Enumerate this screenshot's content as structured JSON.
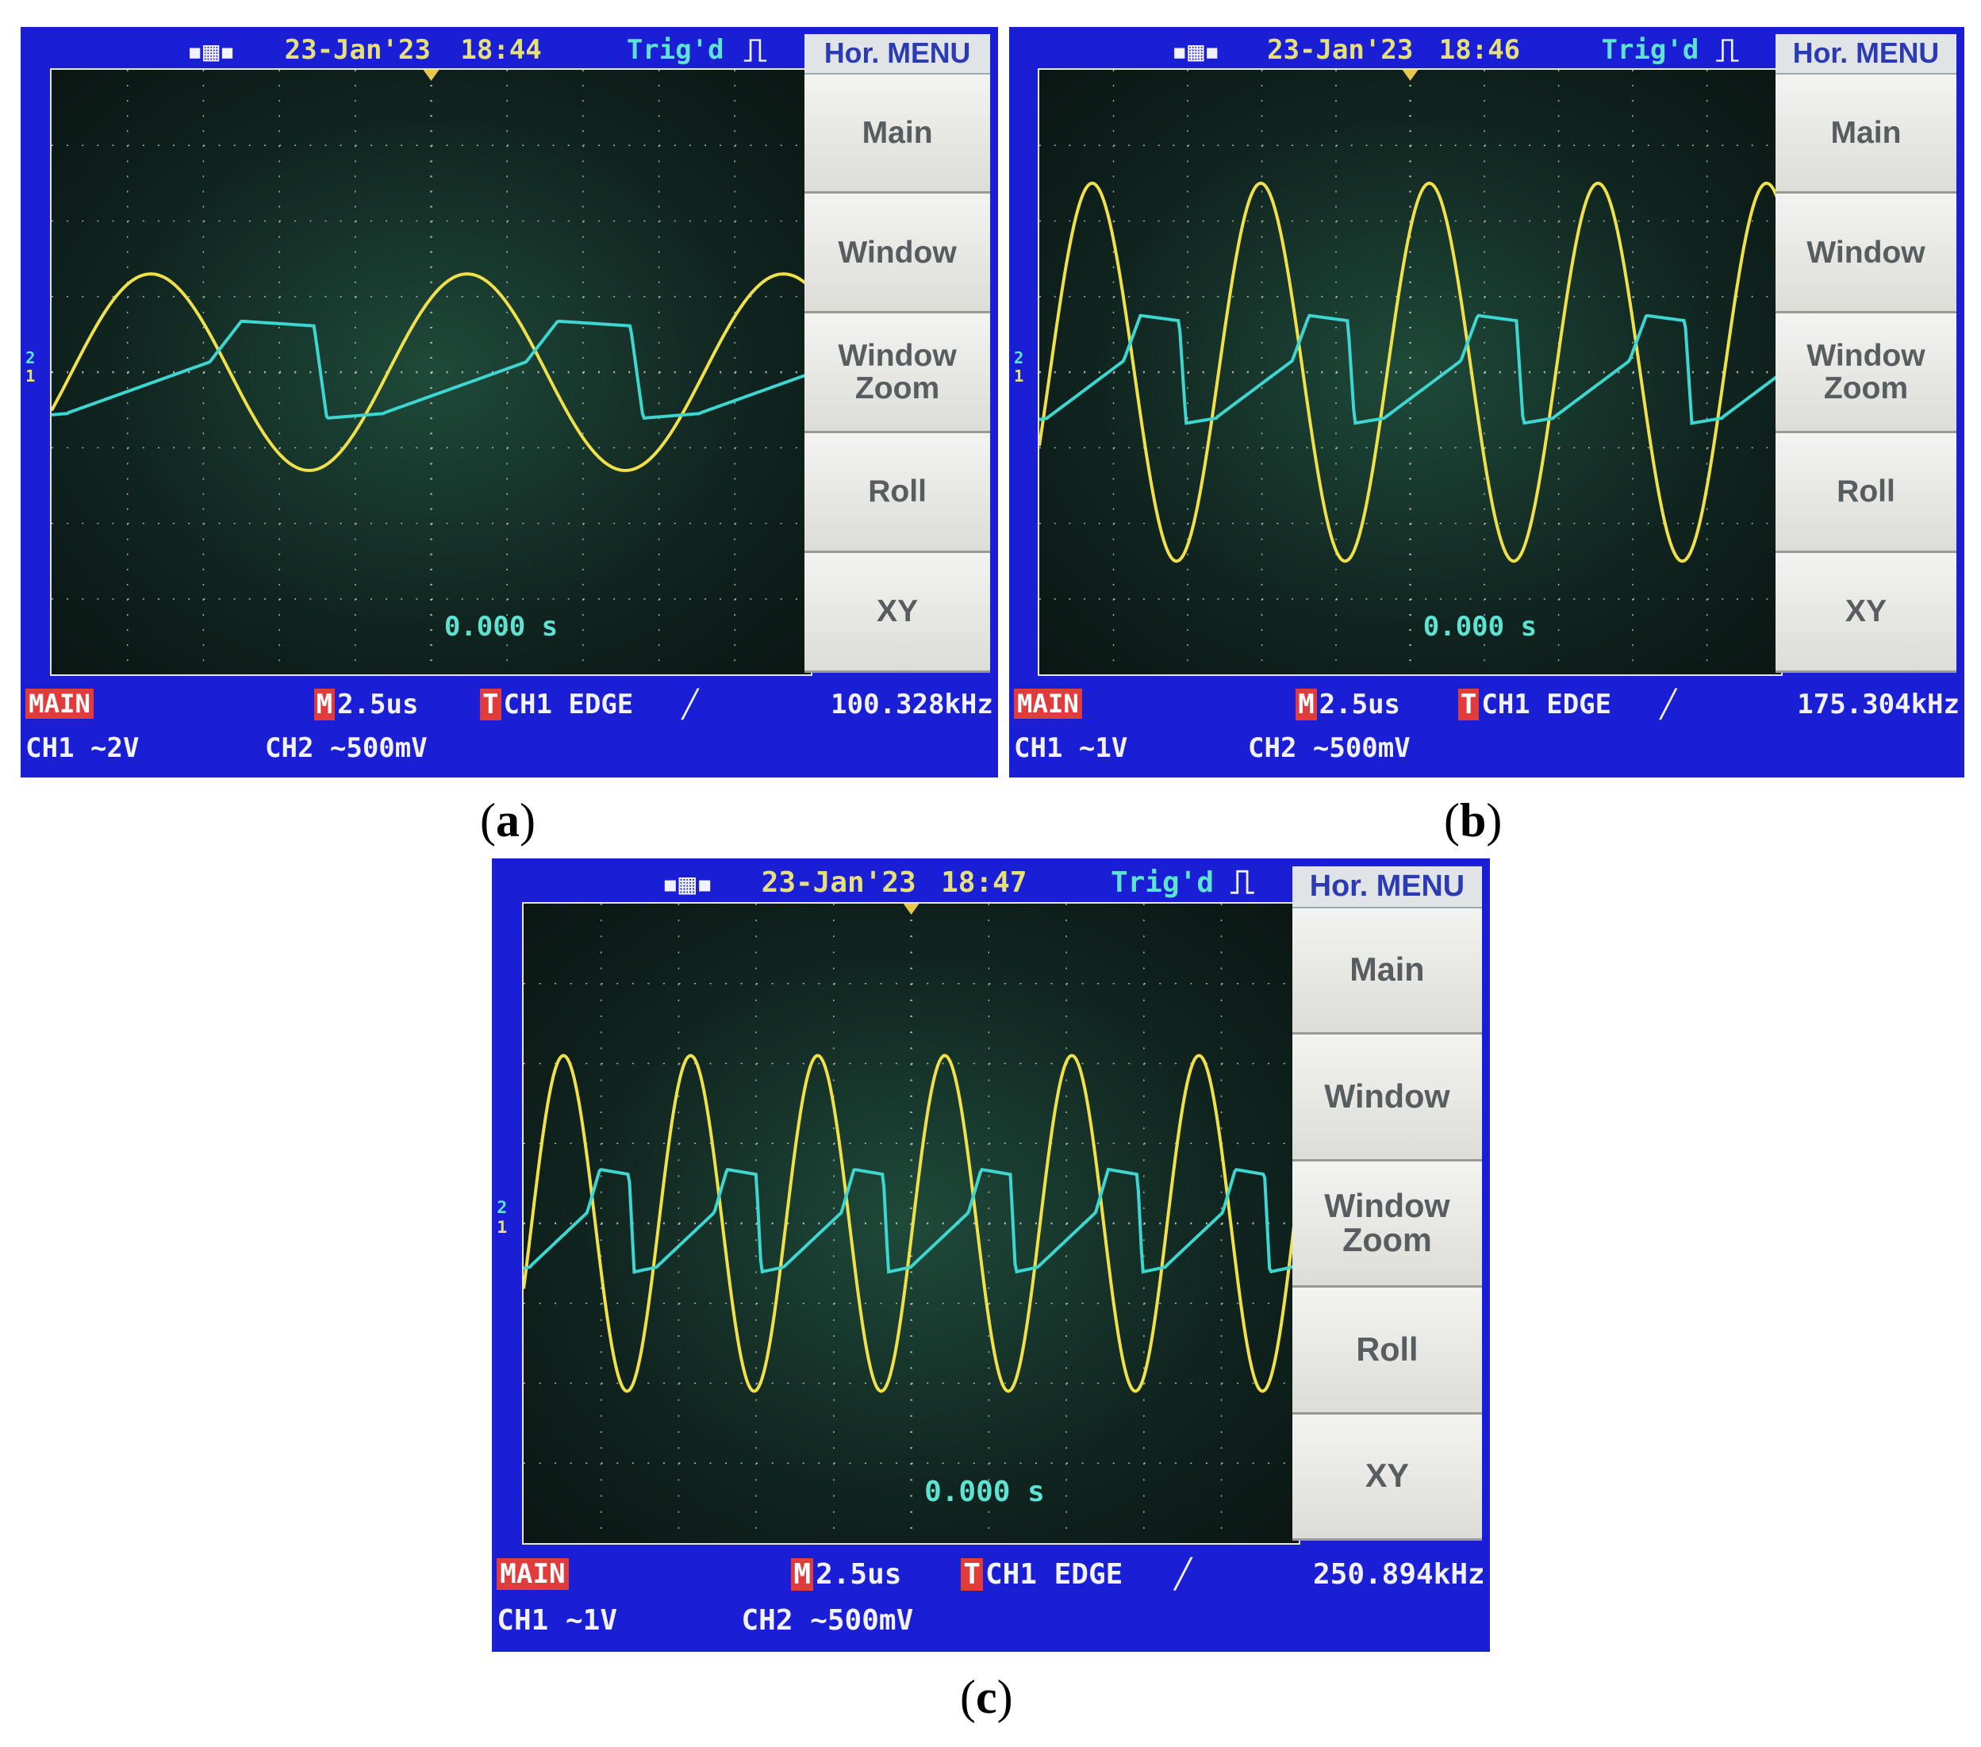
{
  "panels": [
    {
      "id": "a",
      "caption": "a",
      "date": "23-Jan'23",
      "time": "18:44",
      "trig_status": "Trig'd",
      "menu_title": "Hor. MENU",
      "menu_items": [
        "Main",
        "Window",
        "Window\nZoom",
        "Roll",
        "XY"
      ],
      "time_offset": "0.000 s",
      "mode_label": "MAIN",
      "timebase": "2.5us",
      "trigger": "CH1 EDGE",
      "frequency": "100.328kHz",
      "ch1": "CH1 ~2V",
      "ch2": "CH2 ~500mV",
      "ch1_marker": "1",
      "ch2_marker": "2",
      "ch1_amplitude_div": 1.3,
      "ch1_cycles": 2.4,
      "ch2_amplitude_div": 0.9,
      "ch2_offset_div": 0.0
    },
    {
      "id": "b",
      "caption": "b",
      "date": "23-Jan'23",
      "time": "18:46",
      "trig_status": "Trig'd",
      "menu_title": "Hor. MENU",
      "menu_items": [
        "Main",
        "Window",
        "Window\nZoom",
        "Roll",
        "XY"
      ],
      "time_offset": "0.000 s",
      "mode_label": "MAIN",
      "timebase": "2.5us",
      "trigger": "CH1 EDGE",
      "frequency": "175.304kHz",
      "ch1": "CH1 ~1V",
      "ch2": "CH2 ~500mV",
      "ch1_marker": "1",
      "ch2_marker": "2",
      "ch1_amplitude_div": 2.5,
      "ch1_cycles": 4.4,
      "ch2_amplitude_div": 1.0,
      "ch2_offset_div": 0.0
    },
    {
      "id": "c",
      "caption": "c",
      "date": "23-Jan'23",
      "time": "18:47",
      "trig_status": "Trig'd",
      "menu_title": "Hor. MENU",
      "menu_items": [
        "Main",
        "Window",
        "Window\nZoom",
        "Roll",
        "XY"
      ],
      "time_offset": "0.000 s",
      "mode_label": "MAIN",
      "timebase": "2.5us",
      "trigger": "CH1 EDGE",
      "frequency": "250.894kHz",
      "ch1": "CH1 ~1V",
      "ch2": "CH2 ~500mV",
      "ch1_marker": "1",
      "ch2_marker": "2",
      "ch1_amplitude_div": 2.1,
      "ch1_cycles": 6.1,
      "ch2_amplitude_div": 0.9,
      "ch2_offset_div": 0.0
    }
  ],
  "colors": {
    "ch1": "#f0e04a",
    "ch2": "#3ed6d0",
    "grid": "#d8d8d8",
    "frame": "#1a1fd6"
  }
}
